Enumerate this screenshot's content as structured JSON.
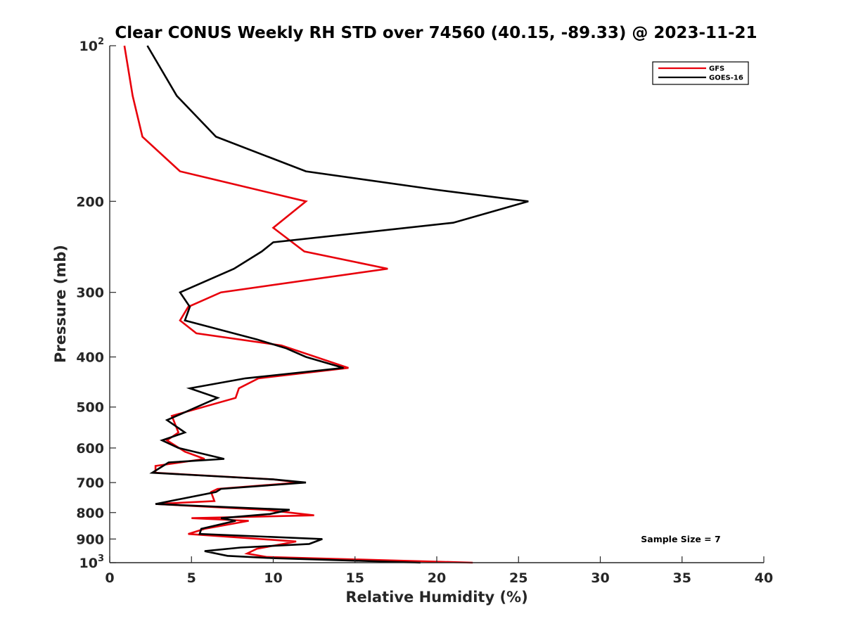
{
  "chart_data": {
    "type": "line",
    "title": "Clear CONUS Weekly RH STD over 74560 (40.15, -89.33) @ 2023-11-21",
    "xlabel": "Relative Humidity (%)",
    "ylabel": "Pressure (mb)",
    "xlim": [
      0,
      40
    ],
    "ylim": [
      100,
      1000
    ],
    "y_scale": "log",
    "y_reversed": true,
    "grid": false,
    "legend_position": "top-right",
    "x_ticks": [
      "0",
      "5",
      "10",
      "15",
      "20",
      "25",
      "30",
      "35",
      "40"
    ],
    "y_ticks": [
      {
        "value": 100,
        "base": "10",
        "exp": "2"
      },
      {
        "value": 200,
        "base": "200",
        "exp": ""
      },
      {
        "value": 300,
        "base": "300",
        "exp": ""
      },
      {
        "value": 400,
        "base": "400",
        "exp": ""
      },
      {
        "value": 500,
        "base": "500",
        "exp": ""
      },
      {
        "value": 600,
        "base": "600",
        "exp": ""
      },
      {
        "value": 700,
        "base": "700",
        "exp": ""
      },
      {
        "value": 800,
        "base": "800",
        "exp": ""
      },
      {
        "value": 900,
        "base": "900",
        "exp": ""
      },
      {
        "value": 1000,
        "base": "10",
        "exp": "3"
      }
    ],
    "annotation": "Sample Size = 7",
    "series": [
      {
        "name": "GFS",
        "color": "#e8000b",
        "points": [
          [
            0.9,
            100
          ],
          [
            1.4,
            125
          ],
          [
            2.0,
            150
          ],
          [
            4.3,
            175
          ],
          [
            12.0,
            200
          ],
          [
            10.0,
            225
          ],
          [
            11.9,
            250
          ],
          [
            17.0,
            270
          ],
          [
            6.8,
            300
          ],
          [
            4.8,
            320
          ],
          [
            4.3,
            340
          ],
          [
            5.3,
            360
          ],
          [
            10.5,
            380
          ],
          [
            12.6,
            400
          ],
          [
            14.6,
            420
          ],
          [
            9.1,
            440
          ],
          [
            7.9,
            460
          ],
          [
            7.7,
            480
          ],
          [
            3.8,
            520
          ],
          [
            4.2,
            560
          ],
          [
            3.5,
            580
          ],
          [
            4.6,
            610
          ],
          [
            5.8,
            630
          ],
          [
            2.8,
            650
          ],
          [
            2.8,
            670
          ],
          [
            10.0,
            690
          ],
          [
            11.6,
            700
          ],
          [
            6.6,
            720
          ],
          [
            6.2,
            730
          ],
          [
            6.4,
            760
          ],
          [
            2.8,
            770
          ],
          [
            9.5,
            790
          ],
          [
            12.5,
            810
          ],
          [
            5.0,
            820
          ],
          [
            8.5,
            830
          ],
          [
            5.8,
            860
          ],
          [
            4.8,
            880
          ],
          [
            11.4,
            910
          ],
          [
            9.0,
            940
          ],
          [
            8.4,
            960
          ],
          [
            9.6,
            975
          ],
          [
            22.2,
            1000
          ]
        ]
      },
      {
        "name": "GOES-16",
        "color": "#000000",
        "points": [
          [
            2.3,
            100
          ],
          [
            4.1,
            125
          ],
          [
            6.5,
            150
          ],
          [
            12.0,
            175
          ],
          [
            20.0,
            190
          ],
          [
            25.6,
            200
          ],
          [
            21.0,
            220
          ],
          [
            10.0,
            240
          ],
          [
            9.3,
            250
          ],
          [
            7.6,
            270
          ],
          [
            4.3,
            300
          ],
          [
            4.9,
            320
          ],
          [
            4.6,
            340
          ],
          [
            9.0,
            370
          ],
          [
            10.8,
            385
          ],
          [
            12.0,
            400
          ],
          [
            14.3,
            420
          ],
          [
            8.3,
            440
          ],
          [
            4.9,
            460
          ],
          [
            6.6,
            480
          ],
          [
            4.7,
            510
          ],
          [
            3.5,
            530
          ],
          [
            4.6,
            560
          ],
          [
            3.2,
            580
          ],
          [
            4.2,
            600
          ],
          [
            7.0,
            630
          ],
          [
            3.6,
            640
          ],
          [
            2.6,
            670
          ],
          [
            10.0,
            690
          ],
          [
            12.0,
            700
          ],
          [
            6.8,
            720
          ],
          [
            6.5,
            730
          ],
          [
            2.8,
            770
          ],
          [
            11.0,
            790
          ],
          [
            9.8,
            805
          ],
          [
            6.8,
            820
          ],
          [
            7.7,
            830
          ],
          [
            5.6,
            860
          ],
          [
            5.5,
            880
          ],
          [
            13.0,
            900
          ],
          [
            12.2,
            920
          ],
          [
            8.0,
            935
          ],
          [
            5.8,
            950
          ],
          [
            7.2,
            970
          ],
          [
            10.0,
            980
          ],
          [
            19.0,
            1000
          ]
        ]
      }
    ]
  }
}
